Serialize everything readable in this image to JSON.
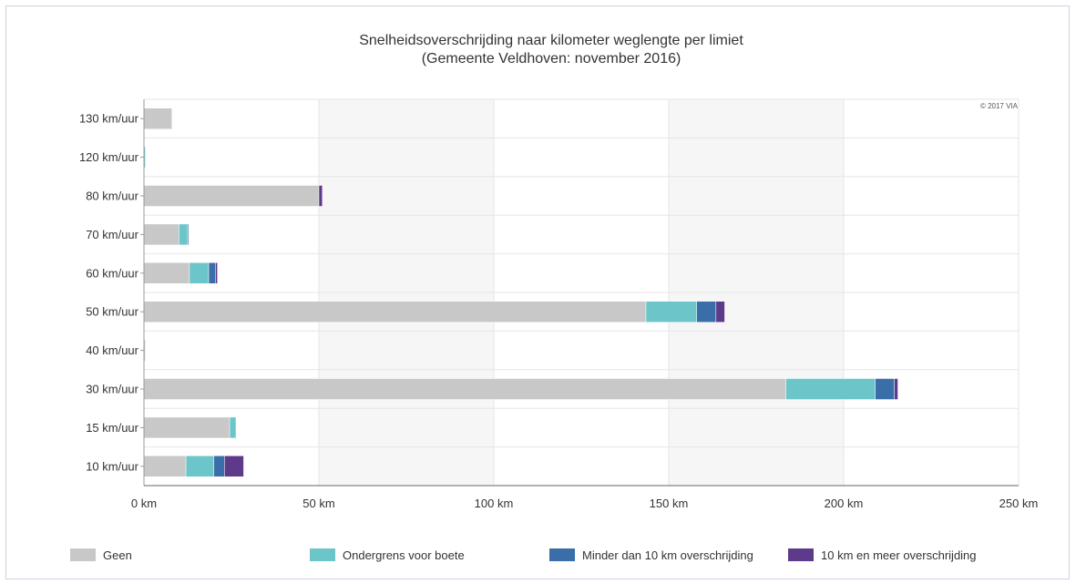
{
  "chart_data": {
    "type": "bar",
    "orientation": "horizontal",
    "stacked": true,
    "title": "Snelheidsoverschrijding naar kilometer weglengte per limiet",
    "subtitle": "(Gemeente Veldhoven: november 2016)",
    "credit": "© 2017 VIA",
    "categories": [
      "130 km/uur",
      "120 km/uur",
      "80 km/uur",
      "70 km/uur",
      "60 km/uur",
      "50 km/uur",
      "40 km/uur",
      "30 km/uur",
      "15 km/uur",
      "10 km/uur"
    ],
    "series": [
      {
        "name": "Geen",
        "color": "#c8c8c8",
        "values": [
          8,
          0,
          50,
          10,
          13,
          143.5,
          0.4,
          183.5,
          24.5,
          12
        ]
      },
      {
        "name": "Ondergrens voor boete",
        "color": "#6cc5c8",
        "values": [
          0,
          0.4,
          0,
          2.5,
          5.5,
          14.5,
          0,
          25.5,
          1.8,
          8
        ]
      },
      {
        "name": "Minder dan 10 km overschrijding",
        "color": "#3a6ea8",
        "values": [
          0,
          0,
          0,
          0.3,
          2,
          5.5,
          0,
          5.5,
          0,
          3
        ]
      },
      {
        "name": "10 km en meer overschrijding",
        "color": "#5e3a8a",
        "values": [
          0,
          0,
          1,
          0,
          0.5,
          2.5,
          0,
          1,
          0,
          5.5
        ]
      }
    ],
    "xlim": [
      0,
      250
    ],
    "xticks": [
      0,
      50,
      100,
      150,
      200,
      250
    ],
    "xtick_labels": [
      "0 km",
      "50 km",
      "100 km",
      "150 km",
      "200 km",
      "250 km"
    ],
    "grid": true,
    "legend_position": "bottom"
  }
}
